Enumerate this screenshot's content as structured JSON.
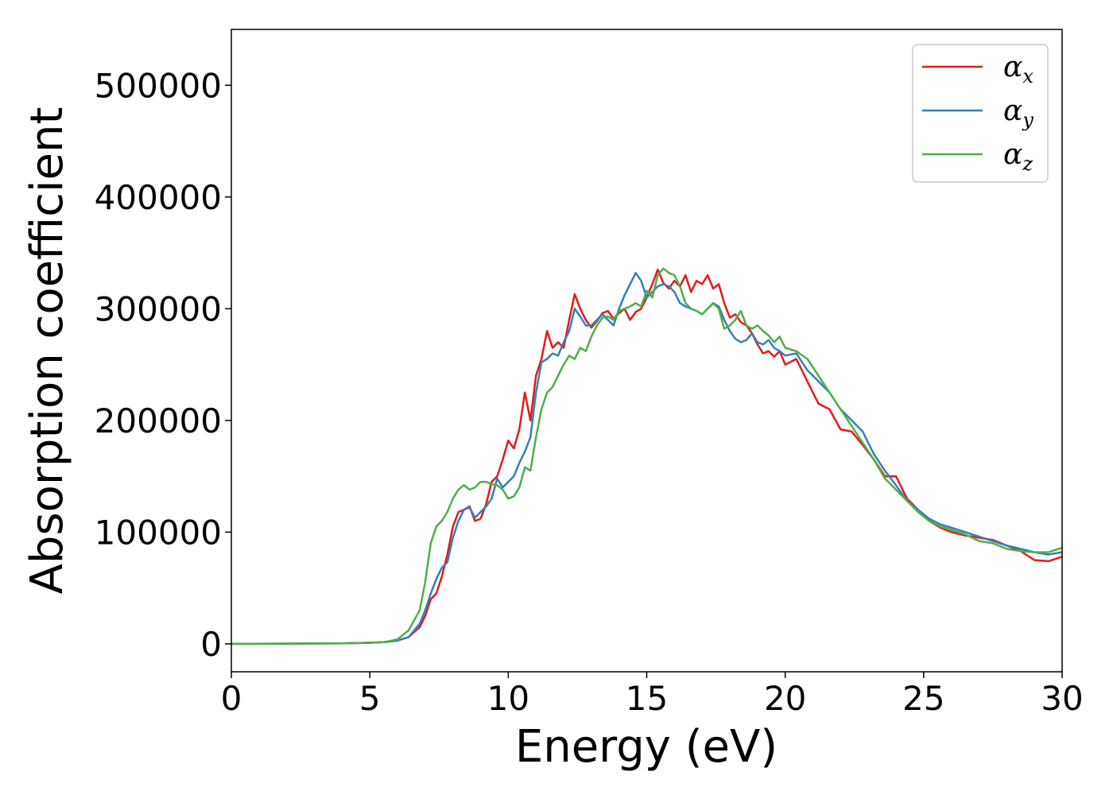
{
  "chart_data": {
    "type": "line",
    "title": "",
    "xlabel": "Energy (eV)",
    "ylabel": "Absorption coefficient",
    "xlim": [
      0,
      30
    ],
    "ylim": [
      -25000,
      550000
    ],
    "xticks": [
      "0",
      "5",
      "10",
      "15",
      "20",
      "25",
      "30"
    ],
    "yticks": [
      "0",
      "100000",
      "200000",
      "300000",
      "400000",
      "500000"
    ],
    "grid": false,
    "legend": "top-right",
    "series": [
      {
        "name": "α",
        "subscript": "x",
        "color": "#e41a1c",
        "x": [
          0,
          2,
          4,
          5,
          5.5,
          6,
          6.4,
          6.8,
          7.0,
          7.2,
          7.4,
          7.6,
          7.8,
          8.0,
          8.2,
          8.4,
          8.6,
          8.8,
          9.0,
          9.2,
          9.4,
          9.6,
          9.8,
          10.0,
          10.2,
          10.4,
          10.6,
          10.8,
          11.0,
          11.2,
          11.4,
          11.6,
          11.8,
          12.0,
          12.2,
          12.4,
          12.6,
          12.8,
          13.0,
          13.2,
          13.4,
          13.6,
          13.8,
          14.0,
          14.2,
          14.4,
          14.6,
          14.8,
          15.0,
          15.2,
          15.4,
          15.6,
          15.8,
          16.0,
          16.2,
          16.4,
          16.6,
          16.8,
          17.0,
          17.2,
          17.4,
          17.6,
          17.8,
          18.0,
          18.2,
          18.4,
          18.6,
          18.8,
          19.0,
          19.2,
          19.4,
          19.6,
          19.8,
          20.0,
          20.4,
          20.8,
          21.2,
          21.6,
          22.0,
          22.4,
          22.8,
          23.2,
          23.6,
          24.0,
          24.4,
          24.8,
          25.2,
          25.6,
          26.0,
          26.5,
          27.0,
          27.5,
          28.0,
          28.5,
          29.0,
          29.5,
          30.0
        ],
        "y": [
          0,
          200,
          500,
          1000,
          1500,
          3000,
          6000,
          15000,
          25000,
          40000,
          45000,
          60000,
          80000,
          105000,
          118000,
          120000,
          123000,
          110000,
          112000,
          125000,
          145000,
          150000,
          165000,
          182000,
          175000,
          192000,
          225000,
          200000,
          240000,
          255000,
          280000,
          265000,
          270000,
          265000,
          290000,
          313000,
          300000,
          290000,
          283000,
          289000,
          296000,
          298000,
          291000,
          296000,
          300000,
          290000,
          297000,
          300000,
          310000,
          322000,
          335000,
          323000,
          318000,
          325000,
          320000,
          330000,
          315000,
          325000,
          322000,
          330000,
          318000,
          322000,
          305000,
          292000,
          295000,
          288000,
          285000,
          278000,
          268000,
          260000,
          262000,
          257000,
          262000,
          250000,
          255000,
          235000,
          215000,
          210000,
          192000,
          190000,
          178000,
          165000,
          150000,
          150000,
          130000,
          120000,
          110000,
          104000,
          100000,
          97000,
          95000,
          93000,
          88000,
          83000,
          75000,
          74000,
          78000
        ]
      },
      {
        "name": "α",
        "subscript": "y",
        "color": "#377eb8",
        "x": [
          0,
          2,
          4,
          5,
          5.5,
          6,
          6.4,
          6.8,
          7.0,
          7.2,
          7.4,
          7.6,
          7.8,
          8.0,
          8.2,
          8.4,
          8.6,
          8.8,
          9.0,
          9.2,
          9.4,
          9.6,
          9.8,
          10.0,
          10.2,
          10.4,
          10.6,
          10.8,
          11.0,
          11.2,
          11.4,
          11.6,
          11.8,
          12.0,
          12.2,
          12.4,
          12.6,
          12.8,
          13.0,
          13.2,
          13.4,
          13.6,
          13.8,
          14.0,
          14.2,
          14.4,
          14.6,
          14.8,
          15.0,
          15.2,
          15.4,
          15.6,
          15.8,
          16.0,
          16.2,
          16.4,
          16.6,
          16.8,
          17.0,
          17.2,
          17.4,
          17.6,
          17.8,
          18.0,
          18.2,
          18.4,
          18.6,
          18.8,
          19.0,
          19.2,
          19.4,
          19.6,
          19.8,
          20.0,
          20.4,
          20.8,
          21.2,
          21.6,
          22.0,
          22.4,
          22.8,
          23.2,
          23.6,
          24.0,
          24.4,
          24.8,
          25.2,
          25.6,
          26.0,
          26.5,
          27.0,
          27.5,
          28.0,
          28.5,
          29.0,
          29.5,
          30.0
        ],
        "y": [
          0,
          200,
          500,
          1000,
          1500,
          3000,
          6000,
          18000,
          30000,
          45000,
          58000,
          68000,
          73000,
          95000,
          110000,
          120000,
          122000,
          113000,
          118000,
          123000,
          130000,
          148000,
          140000,
          145000,
          150000,
          162000,
          172000,
          185000,
          225000,
          252000,
          255000,
          260000,
          258000,
          270000,
          280000,
          300000,
          293000,
          285000,
          285000,
          290000,
          295000,
          290000,
          285000,
          300000,
          312000,
          322000,
          332000,
          325000,
          310000,
          315000,
          320000,
          322000,
          320000,
          315000,
          305000,
          302000,
          300000,
          298000,
          295000,
          300000,
          305000,
          302000,
          290000,
          280000,
          273000,
          270000,
          272000,
          278000,
          270000,
          268000,
          272000,
          265000,
          262000,
          258000,
          260000,
          245000,
          235000,
          225000,
          210000,
          200000,
          190000,
          170000,
          155000,
          142000,
          128000,
          120000,
          112000,
          107000,
          104000,
          100000,
          96000,
          92000,
          88000,
          85000,
          82000,
          80000,
          82000
        ]
      },
      {
        "name": "α",
        "subscript": "z",
        "color": "#4daf4a",
        "x": [
          0,
          2,
          4,
          5,
          5.5,
          6,
          6.4,
          6.8,
          7.0,
          7.2,
          7.4,
          7.6,
          7.8,
          8.0,
          8.2,
          8.4,
          8.6,
          8.8,
          9.0,
          9.2,
          9.4,
          9.6,
          9.8,
          10.0,
          10.2,
          10.4,
          10.6,
          10.8,
          11.0,
          11.2,
          11.4,
          11.6,
          11.8,
          12.0,
          12.2,
          12.4,
          12.6,
          12.8,
          13.0,
          13.2,
          13.4,
          13.6,
          13.8,
          14.0,
          14.2,
          14.4,
          14.6,
          14.8,
          15.0,
          15.2,
          15.4,
          15.6,
          15.8,
          16.0,
          16.2,
          16.4,
          16.6,
          16.8,
          17.0,
          17.2,
          17.4,
          17.6,
          17.8,
          18.0,
          18.2,
          18.4,
          18.6,
          18.8,
          19.0,
          19.2,
          19.4,
          19.6,
          19.8,
          20.0,
          20.4,
          20.8,
          21.2,
          21.6,
          22.0,
          22.4,
          22.8,
          23.2,
          23.6,
          24.0,
          24.4,
          24.8,
          25.2,
          25.6,
          26.0,
          26.5,
          27.0,
          27.5,
          28.0,
          28.5,
          29.0,
          29.5,
          30.0
        ],
        "y": [
          0,
          200,
          500,
          1000,
          1500,
          4000,
          12000,
          30000,
          55000,
          90000,
          105000,
          110000,
          118000,
          130000,
          138000,
          142000,
          138000,
          140000,
          145000,
          145000,
          143000,
          142000,
          138000,
          130000,
          132000,
          140000,
          158000,
          155000,
          185000,
          210000,
          225000,
          230000,
          240000,
          250000,
          258000,
          255000,
          265000,
          262000,
          275000,
          285000,
          292000,
          293000,
          290000,
          298000,
          300000,
          302000,
          305000,
          302000,
          316000,
          310000,
          330000,
          336000,
          332000,
          330000,
          320000,
          305000,
          300000,
          298000,
          295000,
          300000,
          305000,
          300000,
          282000,
          285000,
          290000,
          298000,
          285000,
          282000,
          285000,
          280000,
          276000,
          270000,
          275000,
          265000,
          262000,
          255000,
          240000,
          225000,
          210000,
          195000,
          180000,
          165000,
          148000,
          138000,
          128000,
          118000,
          110000,
          105000,
          102000,
          98000,
          92000,
          90000,
          85000,
          83000,
          82000,
          82000,
          86000
        ]
      }
    ]
  }
}
